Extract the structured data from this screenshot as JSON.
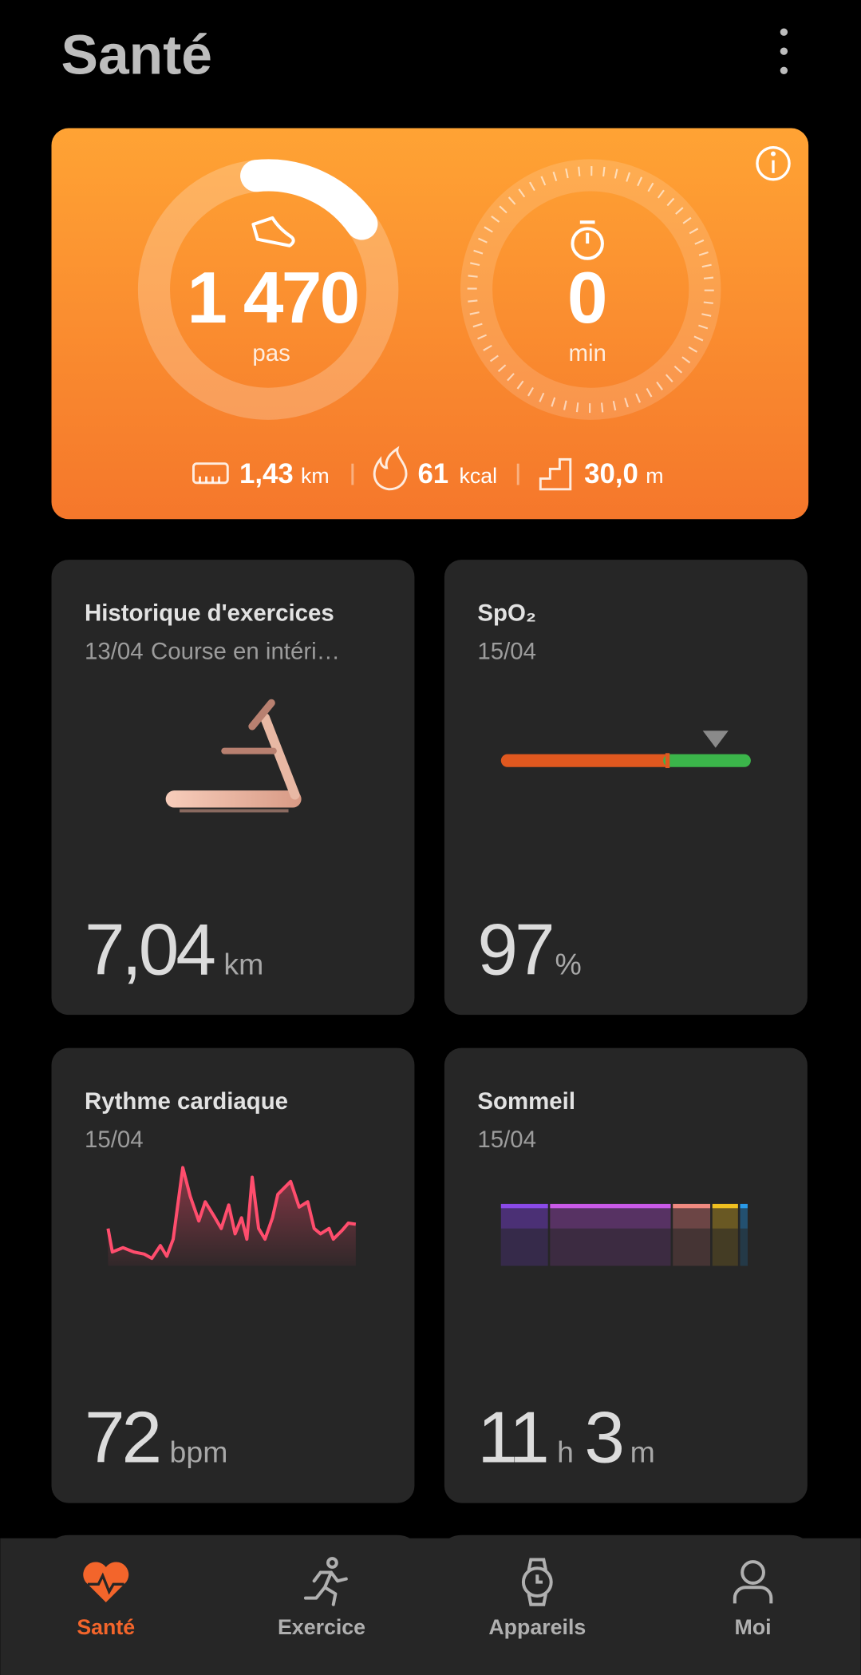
{
  "header": {
    "title": "Santé"
  },
  "activity": {
    "steps": {
      "value": "1 470",
      "unit": "pas"
    },
    "duration": {
      "value": "0",
      "unit": "min"
    },
    "stats": [
      {
        "value": "1,43",
        "unit": "km"
      },
      {
        "value": "61",
        "unit": "kcal"
      },
      {
        "value": "30,0",
        "unit": "m"
      }
    ]
  },
  "cards": [
    {
      "title": "Historique d'exercices",
      "date": "13/04",
      "subtitle": "Course en intéri…",
      "value": "7,04",
      "unit": "km"
    },
    {
      "title": "SpO₂",
      "date": "15/04",
      "value": "97",
      "unit": "%"
    },
    {
      "title": "Rythme cardiaque",
      "date": "15/04",
      "value": "72",
      "unit": "bpm"
    },
    {
      "title": "Sommeil",
      "date": "15/04",
      "value": "11",
      "unit": "h",
      "value2": "3",
      "unit2": "m"
    }
  ],
  "nav": [
    {
      "label": "Santé",
      "active": true
    },
    {
      "label": "Exercice"
    },
    {
      "label": "Appareils"
    },
    {
      "label": "Moi"
    }
  ]
}
